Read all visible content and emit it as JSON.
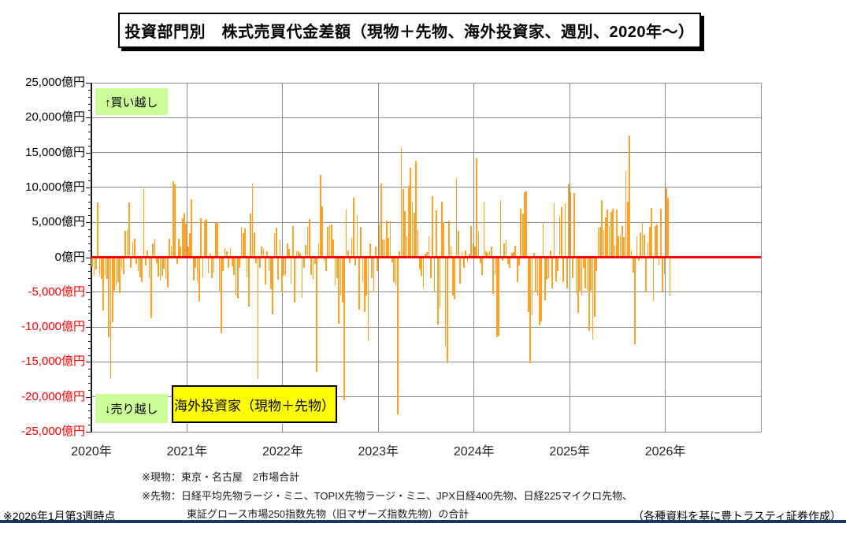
{
  "title": "投資部門別　株式売買代金差額（現物＋先物、海外投資家、週別、2020年～）",
  "annotations": {
    "buy": "↑買い越し",
    "sell": "↓売り越し",
    "series_label": "海外投資家（現物＋先物）"
  },
  "footnotes": {
    "cash": "※現物：東京・名古屋　2市場合計",
    "futures_line1": "※先物：日経平均先物ラージ・ミニ、TOPIX先物ラージ・ミニ、JPX日経400先物、日経225マイクロ先物、",
    "futures_line2": "東証グロース市場250指数先物（旧マザーズ指数先物）の合計",
    "as_of": "※2026年1月第3週時点",
    "credit": "（各種資料を基に豊トラスティ証券作成）"
  },
  "colors": {
    "bar": "#ffa428",
    "zero_line": "#ff0000",
    "gridline": "#8c8c8c",
    "negative_label": "#ff0000",
    "buy_sell_box": "#ccff99",
    "series_box": "#ffff00",
    "divider": "#17375e"
  },
  "chart_data": {
    "type": "bar",
    "title": "投資部門別　株式売買代金差額（現物＋先物、海外投資家、週別、2020年～）",
    "unit": "億円",
    "frequency": "weekly",
    "ylim": [
      -25000,
      25000
    ],
    "grid": true,
    "y_ticks": [
      {
        "v": 25000,
        "label": "25,000億円"
      },
      {
        "v": 20000,
        "label": "20,000億円"
      },
      {
        "v": 15000,
        "label": "15,000億円"
      },
      {
        "v": 10000,
        "label": "10,000億円"
      },
      {
        "v": 5000,
        "label": "5,000億円"
      },
      {
        "v": 0,
        "label": "0億円"
      },
      {
        "v": -5000,
        "label": "-5,000億円"
      },
      {
        "v": -10000,
        "label": "-10,000億円"
      },
      {
        "v": -15000,
        "label": "-15,000億円"
      },
      {
        "v": -20000,
        "label": "-20,000億円"
      },
      {
        "v": -25000,
        "label": "-25,000億円"
      }
    ],
    "x_ticks": [
      "2020年",
      "2021年",
      "2022年",
      "2023年",
      "2024年",
      "2025年",
      "2026年"
    ],
    "x_axis_years_shown": 7,
    "series": [
      {
        "name": "海外投資家（現物＋先物）",
        "year_order": [
          "2020",
          "2021",
          "2022",
          "2023",
          "2024",
          "2025",
          "2026"
        ],
        "values_by_year": {
          "2020": [
            -1400,
            -2600,
            -1800,
            7800,
            -2600,
            -3100,
            -7600,
            -2600,
            -3100,
            -11400,
            -17400,
            -9300,
            -4800,
            -4100,
            -3500,
            -5100,
            -1800,
            -2400,
            3800,
            4000,
            7800,
            -1500,
            2200,
            2600,
            -1000,
            -2000,
            -2900,
            -3600,
            9900,
            -1200,
            1000,
            -3000,
            -8700,
            2000,
            2600,
            -900,
            -2800,
            -3300,
            -2600,
            -1600,
            -3100,
            -4400,
            2600,
            1500,
            10900,
            10400,
            -1000,
            2600,
            1500,
            5600,
            6300,
            4800
          ],
          "2021": [
            1500,
            3400,
            8300,
            -3300,
            -1500,
            -3500,
            -6300,
            5600,
            -3000,
            5300,
            5500,
            -2300,
            500,
            -3000,
            -2200,
            4900,
            5000,
            -5000,
            -10900,
            -2000,
            1300,
            900,
            -1500,
            1300,
            -1300,
            -2500,
            -5500,
            -5900,
            -1500,
            4300,
            3400,
            4100,
            -2800,
            -7000,
            6300,
            10600,
            3600,
            -900,
            -17400,
            -1500,
            1500,
            1300,
            -3900,
            900,
            -2000,
            -4600,
            -8200,
            3300,
            4200,
            -3200,
            2500,
            -5000
          ],
          "2022": [
            -2700,
            -2500,
            2000,
            1200,
            -3800,
            4500,
            -6500,
            800,
            900,
            500,
            -5800,
            -1500,
            1800,
            4500,
            5500,
            -2500,
            -3200,
            -1000,
            -16400,
            2000,
            11800,
            7300,
            -500,
            -2000,
            4400,
            4600,
            4700,
            2500,
            -4000,
            -3000,
            -9500,
            -5500,
            -6500,
            -20500,
            6800,
            1000,
            -800,
            2800,
            8500,
            -1200,
            6000,
            -7500,
            4300,
            -3500,
            -7800,
            -5500,
            -12000,
            2000,
            -3000,
            -5000,
            1500,
            -2000
          ],
          "2023": [
            4600,
            10600,
            2500,
            2500,
            5200,
            2800,
            5300,
            -700,
            -3500,
            -4000,
            -22500,
            900,
            15700,
            9800,
            6600,
            3000,
            10200,
            12800,
            8000,
            6400,
            13800,
            3900,
            -1800,
            -2700,
            -4500,
            500,
            700,
            3000,
            -3000,
            8700,
            -5000,
            6700,
            -9700,
            -7200,
            8000,
            5000,
            -12700,
            -15200,
            5200,
            1500,
            -5500,
            -6000,
            11300,
            3800,
            -3800,
            800,
            -1500,
            1000,
            -700,
            500,
            4500,
            2000
          ],
          "2024": [
            1500,
            14200,
            3800,
            -900,
            -2500,
            8000,
            900,
            600,
            800,
            1500,
            -5300,
            -2500,
            -11400,
            -11200,
            8200,
            -500,
            2000,
            2400,
            -1000,
            -1500,
            600,
            700,
            1600,
            -3500,
            -1200,
            6900,
            6300,
            9300,
            9400,
            -7800,
            -15200,
            -8300,
            600,
            -5000,
            -5500,
            -9800,
            -9200,
            4900,
            -6200,
            -3200,
            -3000,
            1000,
            -4500,
            7700,
            -3400,
            -2000,
            5900,
            7200,
            -3500,
            7700,
            -4500,
            10400
          ],
          "2025": [
            9300,
            -3000,
            9200,
            -5200,
            -8000,
            -4800,
            -5500,
            -1500,
            -4500,
            -4800,
            -10600,
            -4800,
            -11800,
            -8500,
            -2000,
            4200,
            4400,
            8200,
            3900,
            5700,
            6800,
            4500,
            6500,
            6900,
            1800,
            6800,
            3000,
            3200,
            4500,
            2900,
            12400,
            8000,
            17400,
            1000,
            -2200,
            -12500,
            3000,
            -500,
            3500,
            5000,
            3200,
            -5000,
            2100,
            4400,
            7000,
            -6300,
            4500,
            4700,
            -1200,
            6900,
            -4900,
            -2400
          ],
          "2026": [
            9900,
            8500,
            -5600
          ]
        }
      }
    ],
    "legend_position": "none",
    "positive_direction_label": "↑買い越し",
    "negative_direction_label": "↓売り越し"
  }
}
